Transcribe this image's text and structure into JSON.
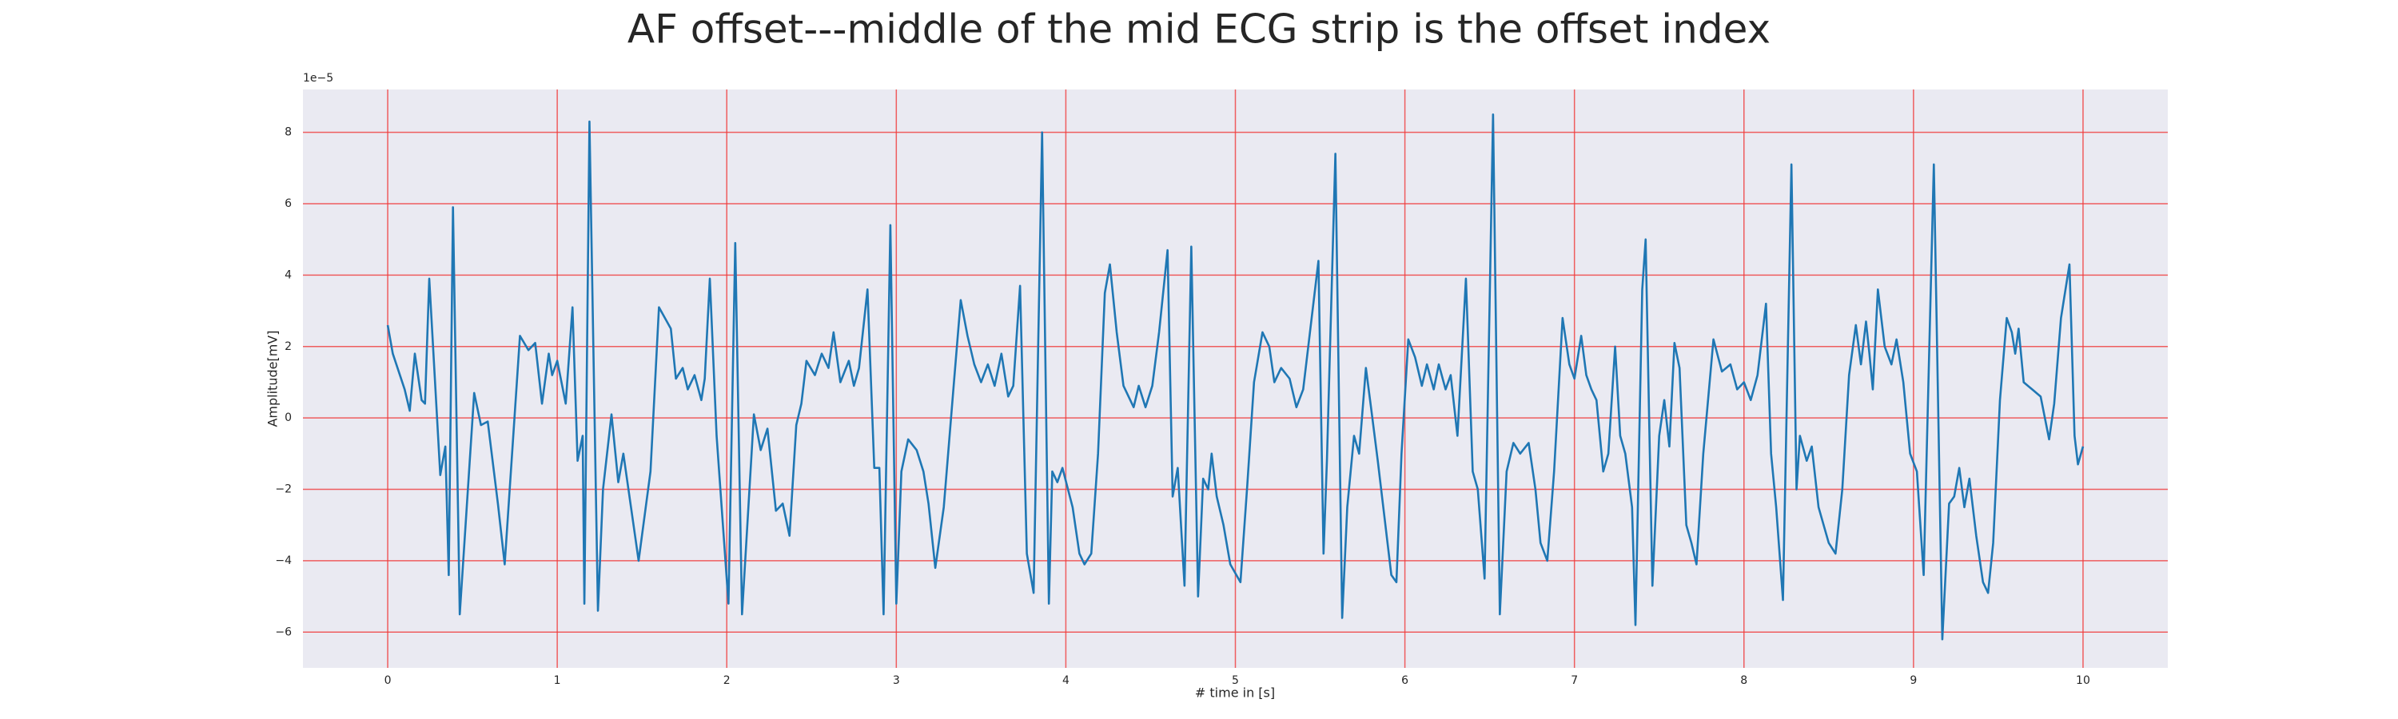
{
  "chart_data": {
    "type": "line",
    "title": "AF offset---middle of the mid ECG strip is the offset index",
    "xlabel": "# time in [s]",
    "ylabel": "Amplitude[mV]",
    "y_offset_label": "1e−5",
    "xlim": [
      -0.5,
      10.5
    ],
    "ylim": [
      -7,
      9.2
    ],
    "xticks": [
      0,
      1,
      2,
      3,
      4,
      5,
      6,
      7,
      8,
      9,
      10
    ],
    "yticks": [
      {
        "value": -6,
        "label": "−6"
      },
      {
        "value": -4,
        "label": "−4"
      },
      {
        "value": -2,
        "label": "−2"
      },
      0,
      2,
      4,
      6,
      8
    ],
    "grid": true,
    "grid_color": "#f03a3a",
    "background": "#eaeaf2",
    "series": [
      {
        "color": "#1f77b4",
        "x": [
          0,
          0.03,
          0.1,
          0.13,
          0.16,
          0.2,
          0.22,
          0.245,
          0.31,
          0.34,
          0.36,
          0.385,
          0.425,
          0.51,
          0.55,
          0.59,
          0.65,
          0.69,
          0.78,
          0.83,
          0.87,
          0.91,
          0.95,
          0.97,
          1.0,
          1.05,
          1.09,
          1.12,
          1.15,
          1.16,
          1.19,
          1.24,
          1.27,
          1.32,
          1.36,
          1.39,
          1.45,
          1.48,
          1.55,
          1.6,
          1.67,
          1.7,
          1.74,
          1.77,
          1.81,
          1.85,
          1.87,
          1.9,
          1.94,
          2.01,
          2.05,
          2.09,
          2.16,
          2.2,
          2.24,
          2.29,
          2.33,
          2.37,
          2.41,
          2.44,
          2.47,
          2.52,
          2.56,
          2.6,
          2.63,
          2.67,
          2.72,
          2.75,
          2.78,
          2.83,
          2.87,
          2.9,
          2.925,
          2.965,
          3.0,
          3.03,
          3.07,
          3.12,
          3.16,
          3.19,
          3.23,
          3.28,
          3.34,
          3.38,
          3.42,
          3.46,
          3.5,
          3.54,
          3.58,
          3.62,
          3.66,
          3.69,
          3.73,
          3.77,
          3.81,
          3.86,
          3.9,
          3.92,
          3.95,
          3.98,
          4.04,
          4.08,
          4.11,
          4.15,
          4.19,
          4.23,
          4.26,
          4.3,
          4.34,
          4.4,
          4.43,
          4.47,
          4.51,
          4.55,
          4.6,
          4.63,
          4.66,
          4.7,
          4.74,
          4.78,
          4.81,
          4.84,
          4.86,
          4.89,
          4.93,
          4.97,
          5.03,
          5.07,
          5.11,
          5.16,
          5.2,
          5.23,
          5.27,
          5.32,
          5.36,
          5.4,
          5.44,
          5.49,
          5.52,
          5.54,
          5.59,
          5.63,
          5.66,
          5.7,
          5.73,
          5.77,
          5.8,
          5.84,
          5.87,
          5.92,
          5.95,
          5.98,
          6.02,
          6.06,
          6.1,
          6.13,
          6.17,
          6.2,
          6.24,
          6.27,
          6.31,
          6.36,
          6.4,
          6.43,
          6.47,
          6.52,
          6.56,
          6.6,
          6.64,
          6.68,
          6.73,
          6.77,
          6.8,
          6.84,
          6.88,
          6.93,
          6.97,
          7.0,
          7.04,
          7.07,
          7.1,
          7.13,
          7.17,
          7.2,
          7.24,
          7.27,
          7.3,
          7.34,
          7.36,
          7.4,
          7.42,
          7.46,
          7.5,
          7.53,
          7.56,
          7.59,
          7.62,
          7.66,
          7.69,
          7.72,
          7.76,
          7.82,
          7.87,
          7.92,
          7.96,
          8.0,
          8.04,
          8.08,
          8.13,
          8.16,
          8.19,
          8.23,
          8.28,
          8.31,
          8.33,
          8.37,
          8.4,
          8.44,
          8.5,
          8.54,
          8.58,
          8.62,
          8.66,
          8.69,
          8.72,
          8.74,
          8.76,
          8.79,
          8.83,
          8.87,
          8.9,
          8.94,
          8.98,
          9.02,
          9.06,
          9.12,
          9.17,
          9.21,
          9.24,
          9.27,
          9.3,
          9.33,
          9.37,
          9.41,
          9.44,
          9.47,
          9.51,
          9.55,
          9.58,
          9.6,
          9.62,
          9.65,
          9.7,
          9.75,
          9.8,
          9.83,
          9.87,
          9.92,
          9.95,
          9.97,
          10.0
        ],
        "values": [
          2.6,
          1.8,
          0.8,
          0.2,
          1.8,
          0.5,
          0.4,
          3.9,
          -1.6,
          -0.8,
          -4.4,
          5.9,
          -5.5,
          0.7,
          -0.2,
          -0.1,
          -2.4,
          -4.1,
          2.3,
          1.9,
          2.1,
          0.4,
          1.8,
          1.2,
          1.6,
          0.4,
          3.1,
          -1.2,
          -0.5,
          -5.2,
          8.3,
          -5.4,
          -2,
          0.1,
          -1.8,
          -1,
          -3,
          -4,
          -1.5,
          3.1,
          2.5,
          1.1,
          1.4,
          0.8,
          1.2,
          0.5,
          1.1,
          3.9,
          -0.5,
          -5.2,
          4.9,
          -5.5,
          0.1,
          -0.9,
          -0.3,
          -2.6,
          -2.4,
          -3.3,
          -0.2,
          0.4,
          1.6,
          1.2,
          1.8,
          1.4,
          2.4,
          1.0,
          1.6,
          0.9,
          1.4,
          3.6,
          -1.4,
          -1.4,
          -5.5,
          5.4,
          -5.2,
          -1.5,
          -0.6,
          -0.9,
          -1.5,
          -2.4,
          -4.2,
          -2.5,
          1.0,
          3.3,
          2.3,
          1.5,
          1.0,
          1.5,
          0.9,
          1.8,
          0.6,
          0.9,
          3.7,
          -3.8,
          -4.9,
          8.0,
          -5.2,
          -1.5,
          -1.8,
          -1.4,
          -2.5,
          -3.8,
          -4.1,
          -3.8,
          -1.0,
          3.5,
          4.3,
          2.4,
          0.9,
          0.3,
          0.9,
          0.3,
          0.9,
          2.4,
          4.7,
          -2.2,
          -1.4,
          -4.7,
          4.8,
          -5.0,
          -1.7,
          -2.0,
          -1.0,
          -2.2,
          -3.0,
          -4.1,
          -4.6,
          -1.9,
          1.0,
          2.4,
          2.0,
          1.0,
          1.4,
          1.1,
          0.3,
          0.8,
          2.4,
          4.4,
          -3.8,
          -1.2,
          7.4,
          -5.6,
          -2.5,
          -0.5,
          -1.0,
          1.4,
          0.3,
          -1.2,
          -2.4,
          -4.4,
          -4.6,
          -1.0,
          2.2,
          1.7,
          0.9,
          1.5,
          0.8,
          1.5,
          0.8,
          1.2,
          -0.5,
          3.9,
          -1.5,
          -2.0,
          -4.5,
          8.5,
          -5.5,
          -1.5,
          -0.7,
          -1.0,
          -0.7,
          -2.0,
          -3.5,
          -4.0,
          -1.5,
          2.8,
          1.5,
          1.1,
          2.3,
          1.2,
          0.8,
          0.5,
          -1.5,
          -1.0,
          2.0,
          -0.5,
          -1.0,
          -2.5,
          -5.8,
          3.6,
          5.0,
          -4.7,
          -0.5,
          0.5,
          -0.8,
          2.1,
          1.4,
          -3.0,
          -3.5,
          -4.1,
          -1.0,
          2.2,
          1.3,
          1.5,
          0.8,
          1.0,
          0.5,
          1.2,
          3.2,
          -1.0,
          -2.5,
          -5.1,
          7.1,
          -2.0,
          -0.5,
          -1.2,
          -0.8,
          -2.5,
          -3.5,
          -3.8,
          -2.0,
          1.2,
          2.6,
          1.5,
          2.7,
          1.8,
          0.8,
          3.6,
          2.0,
          1.5,
          2.2,
          1.0,
          -1.0,
          -1.5,
          -4.4,
          7.1,
          -6.2,
          -2.4,
          -2.2,
          -1.4,
          -2.5,
          -1.7,
          -3.3,
          -4.6,
          -4.9,
          -3.5,
          0.5,
          2.8,
          2.4,
          1.8,
          2.5,
          1.0,
          0.8,
          0.6,
          -0.6,
          0.4,
          2.8,
          4.3,
          -0.5,
          -1.3,
          -0.8
        ]
      }
    ]
  }
}
